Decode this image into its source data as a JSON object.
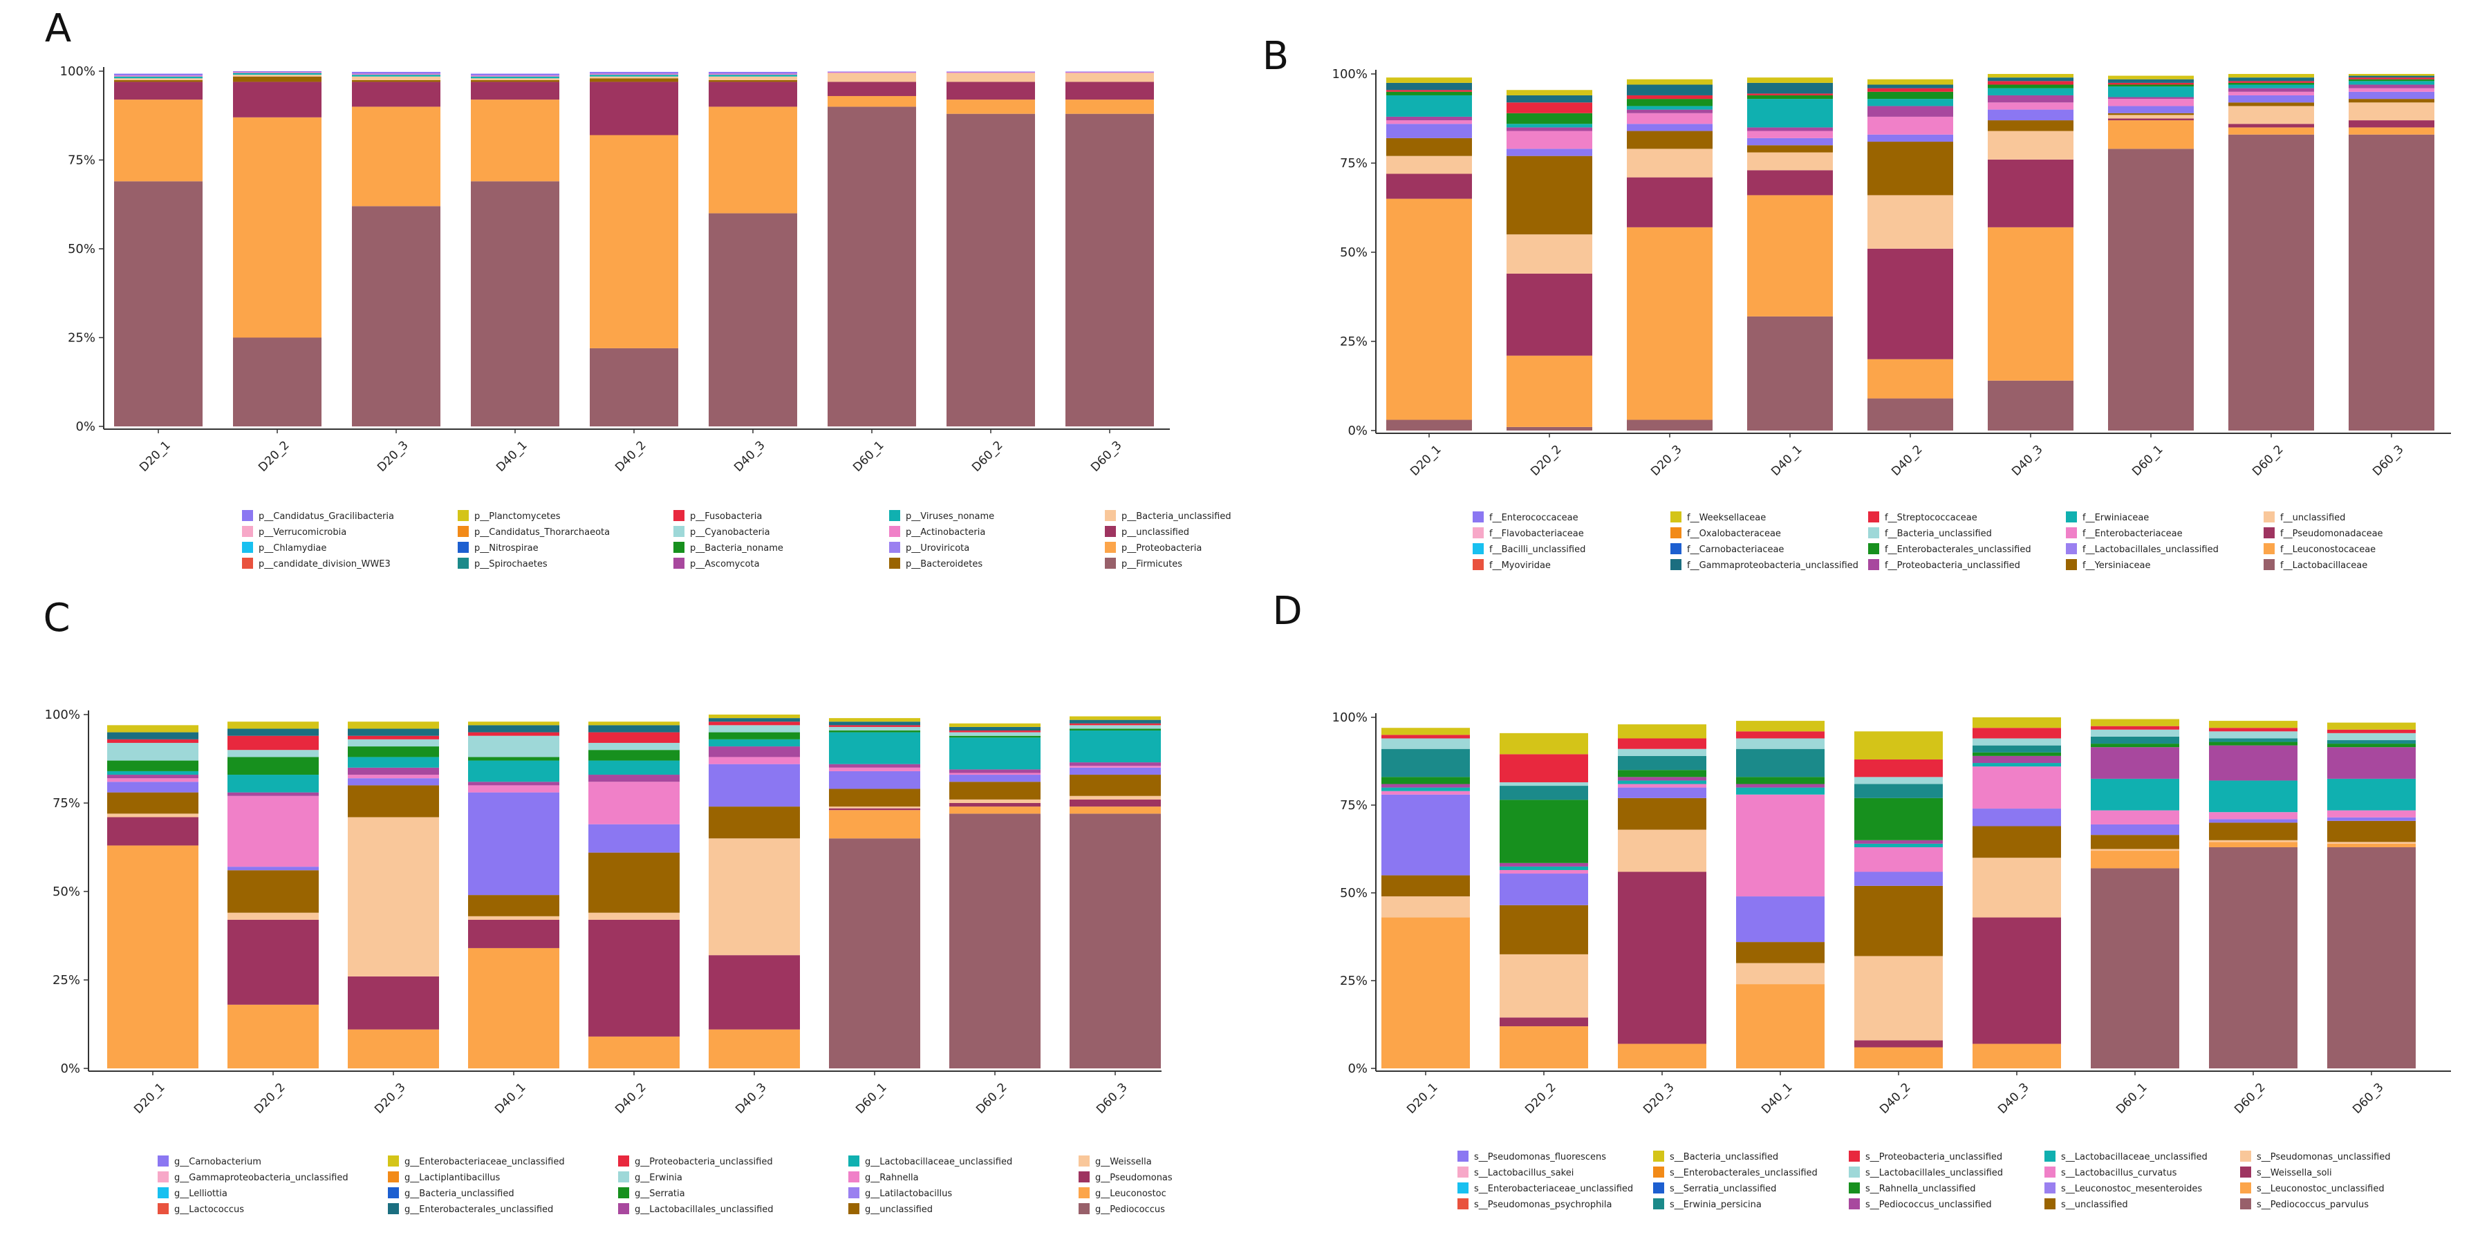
{
  "figure": {
    "panel_labels": [
      "A",
      "B",
      "C",
      "D"
    ]
  },
  "chart_data": [
    {
      "panel": "A",
      "type": "stacked_bar",
      "title": "",
      "xlabel": "",
      "ylabel": "",
      "ylim": [
        0,
        100
      ],
      "yticks": [
        "0%",
        "25%",
        "50%",
        "75%",
        "100%"
      ],
      "categories": [
        "D20_1",
        "D20_2",
        "D20_3",
        "D40_1",
        "D40_2",
        "D40_3",
        "D60_1",
        "D60_2",
        "D60_3"
      ],
      "series": [
        {
          "name": "p__Firmicutes",
          "color": "#98606A",
          "values": [
            69,
            25,
            62,
            69,
            22,
            60,
            90,
            88,
            88
          ]
        },
        {
          "name": "p__Proteobacteria",
          "color": "#FCA54A",
          "values": [
            23,
            62,
            28,
            23,
            60,
            30,
            3,
            4,
            4
          ]
        },
        {
          "name": "p__unclassified",
          "color": "#9E3460",
          "values": [
            5,
            10,
            7,
            5,
            15,
            7,
            4,
            5,
            5
          ]
        },
        {
          "name": "p__Bacteroidetes",
          "color": "#9A6400",
          "values": [
            0.5,
            1.5,
            0.5,
            0.5,
            1,
            0.5,
            0,
            0,
            0
          ]
        },
        {
          "name": "p__Bacteria_unclassified",
          "color": "#F9C79A",
          "values": [
            0.5,
            0.5,
            1,
            0.5,
            0.5,
            1,
            2.5,
            2.5,
            2.5
          ]
        },
        {
          "name": "p__Viruses_noname",
          "color": "#10B0B0",
          "values": [
            0.5,
            0.5,
            0.5,
            0.5,
            0.5,
            0.5,
            0,
            0,
            0
          ]
        },
        {
          "name": "p__Actinobacteria",
          "color": "#F080C8",
          "values": [
            0.3,
            0.3,
            0.3,
            0.3,
            0.3,
            0.3,
            0.2,
            0.2,
            0.2
          ]
        },
        {
          "name": "p__Candidatus_Gracilibacteria",
          "color": "#8B77F2",
          "values": [
            0.5,
            0.3,
            0.5,
            0.5,
            0.5,
            0.5,
            0.2,
            0.2,
            0.2
          ]
        }
      ],
      "legend": [
        "p__Candidatus_Gracilibacteria",
        "p__Verrucomicrobia",
        "p__Chlamydiae",
        "p__candidate_division_WWE3",
        "p__Planctomycetes",
        "p__Candidatus_Thorarchaeota",
        "p__Nitrospirae",
        "p__Spirochaetes",
        "p__Fusobacteria",
        "p__Cyanobacteria",
        "p__Bacteria_noname",
        "p__Ascomycota",
        "p__Viruses_noname",
        "p__Actinobacteria",
        "p__Uroviricota",
        "p__Bacteroidetes",
        "p__Bacteria_unclassified",
        "p__unclassified",
        "p__Proteobacteria",
        "p__Firmicutes"
      ],
      "legend_colors": [
        "#8B77F2",
        "#F7A8C8",
        "#18C0F0",
        "#E9523E",
        "#D4C418",
        "#F28A18",
        "#1D5FD0",
        "#1B8A8A",
        "#E8283E",
        "#9ED8D8",
        "#17901E",
        "#A8489E",
        "#10B0B0",
        "#F080C8",
        "#9A80F0",
        "#9A6400",
        "#F9C79A",
        "#9E3460",
        "#FCA54A",
        "#98606A"
      ]
    },
    {
      "panel": "B",
      "type": "stacked_bar",
      "title": "",
      "xlabel": "",
      "ylabel": "",
      "ylim": [
        0,
        100
      ],
      "yticks": [
        "0%",
        "25%",
        "50%",
        "75%",
        "100%"
      ],
      "categories": [
        "D20_1",
        "D20_2",
        "D20_3",
        "D40_1",
        "D40_2",
        "D40_3",
        "D60_1",
        "D60_2",
        "D60_3"
      ],
      "series": [
        {
          "name": "f__Lactobacillaceae",
          "color": "#98606A",
          "values": [
            3,
            1,
            3,
            32,
            9,
            14,
            79,
            83,
            83
          ]
        },
        {
          "name": "f__Leuconostocaceae",
          "color": "#FCA54A",
          "values": [
            62,
            20,
            54,
            34,
            11,
            43,
            8,
            2,
            2
          ]
        },
        {
          "name": "f__Pseudomonadaceae",
          "color": "#9E3460",
          "values": [
            7,
            23,
            14,
            7,
            31,
            19,
            0.5,
            1,
            2
          ]
        },
        {
          "name": "f__unclassified",
          "color": "#F9C79A",
          "values": [
            5,
            11,
            8,
            5,
            15,
            8,
            1,
            5,
            5
          ]
        },
        {
          "name": "f__Yersiniaceae",
          "color": "#9A6400",
          "values": [
            5,
            22,
            5,
            2,
            15,
            3,
            0.5,
            1,
            1
          ]
        },
        {
          "name": "f__Lactobacillales_unclassified",
          "color": "#8B77F2",
          "values": [
            4,
            2,
            2,
            2,
            2,
            3,
            2,
            2,
            2
          ]
        },
        {
          "name": "f__Enterobacteriaceae",
          "color": "#F080C8",
          "values": [
            1,
            5,
            3,
            2,
            5,
            2,
            2,
            1,
            1
          ]
        },
        {
          "name": "f__Proteobacteria_unclassified",
          "color": "#A8489E",
          "values": [
            1,
            1,
            1,
            1,
            3,
            2,
            0.5,
            1,
            1
          ]
        },
        {
          "name": "f__Erwiniaceae",
          "color": "#10B0B0",
          "values": [
            6,
            1,
            1,
            8,
            2,
            2,
            3,
            1,
            1
          ]
        },
        {
          "name": "f__Enterobacterales_unclassified",
          "color": "#17901E",
          "values": [
            1,
            3,
            2,
            1,
            2,
            1,
            0.5,
            0.5,
            0.5
          ]
        },
        {
          "name": "f__Streptococcaceae",
          "color": "#E8283E",
          "values": [
            0.5,
            3,
            1,
            0.5,
            1,
            1,
            0.5,
            0.5,
            0.5
          ]
        },
        {
          "name": "f__Gammaproteobacteria_unclassified",
          "color": "#1B6E80",
          "values": [
            2,
            2,
            3,
            3,
            1,
            1,
            1,
            1,
            0.5
          ]
        },
        {
          "name": "f__Weeksellaceae",
          "color": "#D4C418",
          "values": [
            1.5,
            1.5,
            1.5,
            1.5,
            1.5,
            1.5,
            1,
            1,
            1
          ]
        }
      ],
      "legend": [
        "f__Enterococcaceae",
        "f__Flavobacteriaceae",
        "f__Bacilli_unclassified",
        "f__Myoviridae",
        "f__Weeksellaceae",
        "f__Oxalobacteraceae",
        "f__Carnobacteriaceae",
        "f__Gammaproteobacteria_unclassified",
        "f__Streptococcaceae",
        "f__Bacteria_unclassified",
        "f__Enterobacterales_unclassified",
        "f__Proteobacteria_unclassified",
        "f__Erwiniaceae",
        "f__Enterobacteriaceae",
        "f__Lactobacillales_unclassified",
        "f__Yersiniaceae",
        "f__unclassified",
        "f__Pseudomonadaceae",
        "f__Leuconostocaceae",
        "f__Lactobacillaceae"
      ],
      "legend_colors": [
        "#8B77F2",
        "#F7A8C8",
        "#18C0F0",
        "#E9523E",
        "#D4C418",
        "#F28A18",
        "#1D5FD0",
        "#1B6E80",
        "#E8283E",
        "#9ED8D8",
        "#17901E",
        "#A8489E",
        "#10B0B0",
        "#F080C8",
        "#9A80F0",
        "#9A6400",
        "#F9C79A",
        "#9E3460",
        "#FCA54A",
        "#98606A"
      ]
    },
    {
      "panel": "C",
      "type": "stacked_bar",
      "title": "",
      "xlabel": "",
      "ylabel": "",
      "ylim": [
        0,
        100
      ],
      "yticks": [
        "0%",
        "25%",
        "50%",
        "75%",
        "100%"
      ],
      "categories": [
        "D20_1",
        "D20_2",
        "D20_3",
        "D40_1",
        "D40_2",
        "D40_3",
        "D60_1",
        "D60_2",
        "D60_3"
      ],
      "series": [
        {
          "name": "g__Pediococcus",
          "color": "#98606A",
          "values": [
            0,
            0,
            0,
            0,
            0,
            0,
            65,
            72,
            72
          ]
        },
        {
          "name": "g__Leuconostoc",
          "color": "#FCA54A",
          "values": [
            63,
            18,
            11,
            34,
            9,
            11,
            8,
            2,
            2
          ]
        },
        {
          "name": "g__Pseudomonas",
          "color": "#9E3460",
          "values": [
            8,
            24,
            15,
            8,
            33,
            21,
            0.5,
            1,
            2
          ]
        },
        {
          "name": "g__Weissella",
          "color": "#F9C79A",
          "values": [
            1,
            2,
            45,
            1,
            2,
            33,
            0.5,
            1,
            1
          ]
        },
        {
          "name": "g__unclassified",
          "color": "#9A6400",
          "values": [
            6,
            12,
            9,
            6,
            17,
            9,
            5,
            5,
            6
          ]
        },
        {
          "name": "g__Latilactobacillus",
          "color": "#8B77F2",
          "values": [
            3,
            1,
            2,
            29,
            8,
            12,
            5,
            2,
            2
          ]
        },
        {
          "name": "g__Rahnella",
          "color": "#F080C8",
          "values": [
            1,
            20,
            1,
            2,
            12,
            2,
            1,
            0.5,
            0.5
          ]
        },
        {
          "name": "g__Lactobacillales_unclassified",
          "color": "#A8489E",
          "values": [
            1,
            1,
            2,
            1,
            2,
            3,
            1,
            1,
            1
          ]
        },
        {
          "name": "g__Lactobacillaceae_unclassified",
          "color": "#10B0B0",
          "values": [
            1,
            5,
            3,
            6,
            4,
            2,
            9,
            9,
            9
          ]
        },
        {
          "name": "g__Serratia",
          "color": "#17901E",
          "values": [
            3,
            5,
            3,
            1,
            3,
            2,
            0.5,
            0.5,
            0.5
          ]
        },
        {
          "name": "g__Erwinia",
          "color": "#9ED8D8",
          "values": [
            5,
            2,
            2,
            6,
            2,
            2,
            1,
            1,
            1
          ]
        },
        {
          "name": "g__Proteobacteria_unclassified",
          "color": "#E8283E",
          "values": [
            1,
            4,
            1,
            1,
            3,
            1,
            0.5,
            0.5,
            0.5
          ]
        },
        {
          "name": "g__Enterobacterales_unclassified",
          "color": "#1B6E80",
          "values": [
            2,
            2,
            2,
            2,
            2,
            1,
            1,
            1,
            1
          ]
        },
        {
          "name": "g__Enterobacteriaceae_unclassified",
          "color": "#D4C418",
          "values": [
            2,
            2,
            2,
            1,
            1,
            1,
            1,
            1,
            1
          ]
        }
      ],
      "legend": [
        "g__Carnobacterium",
        "g__Gammaproteobacteria_unclassified",
        "g__Lelliottia",
        "g__Lactococcus",
        "g__Enterobacteriaceae_unclassified",
        "g__Lactiplantibacillus",
        "g__Bacteria_unclassified",
        "g__Enterobacterales_unclassified",
        "g__Proteobacteria_unclassified",
        "g__Erwinia",
        "g__Serratia",
        "g__Lactobacillales_unclassified",
        "g__Lactobacillaceae_unclassified",
        "g__Rahnella",
        "g__Latilactobacillus",
        "g__unclassified",
        "g__Weissella",
        "g__Pseudomonas",
        "g__Leuconostoc",
        "g__Pediococcus"
      ],
      "legend_colors": [
        "#8B77F2",
        "#F7A8C8",
        "#18C0F0",
        "#E9523E",
        "#D4C418",
        "#F28A18",
        "#1D5FD0",
        "#1B6E80",
        "#E8283E",
        "#9ED8D8",
        "#17901E",
        "#A8489E",
        "#10B0B0",
        "#F080C8",
        "#9A80F0",
        "#9A6400",
        "#F9C79A",
        "#9E3460",
        "#FCA54A",
        "#98606A"
      ]
    },
    {
      "panel": "D",
      "type": "stacked_bar",
      "title": "",
      "xlabel": "",
      "ylabel": "",
      "ylim": [
        0,
        100
      ],
      "yticks": [
        "0%",
        "25%",
        "50%",
        "75%",
        "100%"
      ],
      "categories": [
        "D20_1",
        "D20_2",
        "D20_3",
        "D40_1",
        "D40_2",
        "D40_3",
        "D60_1",
        "D60_2",
        "D60_3"
      ],
      "series": [
        {
          "name": "s__Pediococcus_parvulus",
          "color": "#98606A",
          "values": [
            0,
            0,
            0,
            0,
            0,
            0,
            57,
            63,
            63
          ]
        },
        {
          "name": "s__Leuconostoc_unclassified",
          "color": "#FCA54A",
          "values": [
            43,
            12,
            7,
            24,
            6,
            7,
            5,
            1.5,
            1
          ]
        },
        {
          "name": "s__Weissella_soli",
          "color": "#9E3460",
          "values": [
            0,
            2.5,
            49,
            0,
            2,
            36,
            0,
            0,
            0
          ]
        },
        {
          "name": "s__Pseudomonas_unclassified",
          "color": "#F9C79A",
          "values": [
            6,
            18,
            12,
            6,
            24,
            17,
            0.5,
            0.5,
            0.5
          ]
        },
        {
          "name": "s__unclassified",
          "color": "#9A6400",
          "values": [
            6,
            14,
            9,
            6,
            20,
            9,
            4,
            5,
            6
          ]
        },
        {
          "name": "s__Leuconostoc_mesenteroides",
          "color": "#8B77F2",
          "values": [
            23,
            9,
            3,
            13,
            4,
            5,
            3,
            1,
            1
          ]
        },
        {
          "name": "s__Lactobacillus_curvatus",
          "color": "#F080C8",
          "values": [
            1,
            1,
            1,
            29,
            7,
            12,
            4,
            2,
            2
          ]
        },
        {
          "name": "s__Lactobacillaceae_unclassified",
          "color": "#10B0B0",
          "values": [
            1,
            1,
            1,
            2,
            1,
            1,
            9,
            9,
            9
          ]
        },
        {
          "name": "s__Pediococcus_unclassified",
          "color": "#A8489E",
          "values": [
            1,
            1,
            1,
            1,
            1,
            2,
            9,
            10,
            9
          ]
        },
        {
          "name": "s__Rahnella_unclassified",
          "color": "#17901E",
          "values": [
            2,
            18,
            2,
            2,
            12,
            1,
            1,
            1,
            1
          ]
        },
        {
          "name": "s__Erwinia_persicina",
          "color": "#1B8A8A",
          "values": [
            8,
            4,
            4,
            8,
            4,
            2,
            2,
            1,
            1
          ]
        },
        {
          "name": "s__Lactobacillales_unclassified",
          "color": "#9ED8D8",
          "values": [
            3,
            1,
            2,
            3,
            2,
            2,
            2,
            2,
            2
          ]
        },
        {
          "name": "s__Proteobacteria_unclassified",
          "color": "#E8283E",
          "values": [
            1,
            8,
            3,
            2,
            5,
            3,
            1,
            1,
            1
          ]
        },
        {
          "name": "s__Bacteria_unclassified",
          "color": "#D4C418",
          "values": [
            2,
            6,
            4,
            3,
            8,
            3,
            2,
            2,
            2
          ]
        }
      ],
      "legend": [
        "s__Pseudomonas_fluorescens",
        "s__Lactobacillus_sakei",
        "s__Enterobacteriaceae_unclassified",
        "s__Pseudomonas_psychrophila",
        "s__Bacteria_unclassified",
        "s__Enterobacterales_unclassified",
        "s__Serratia_unclassified",
        "s__Erwinia_persicina",
        "s__Proteobacteria_unclassified",
        "s__Lactobacillales_unclassified",
        "s__Rahnella_unclassified",
        "s__Pediococcus_unclassified",
        "s__Lactobacillaceae_unclassified",
        "s__Lactobacillus_curvatus",
        "s__Leuconostoc_mesenteroides",
        "s__unclassified",
        "s__Pseudomonas_unclassified",
        "s__Weissella_soli",
        "s__Leuconostoc_unclassified",
        "s__Pediococcus_parvulus"
      ],
      "legend_colors": [
        "#8B77F2",
        "#F7A8C8",
        "#18C0F0",
        "#E9523E",
        "#D4C418",
        "#F28A18",
        "#1D5FD0",
        "#1B8A8A",
        "#E8283E",
        "#9ED8D8",
        "#17901E",
        "#A8489E",
        "#10B0B0",
        "#F080C8",
        "#9A80F0",
        "#9A6400",
        "#F9C79A",
        "#9E3460",
        "#FCA54A",
        "#98606A"
      ]
    }
  ]
}
